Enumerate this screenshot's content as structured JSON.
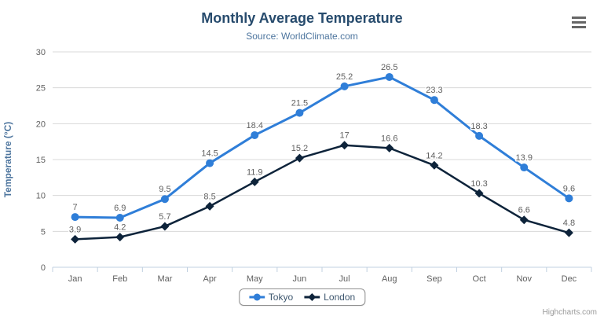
{
  "title": "Monthly Average Temperature",
  "subtitle": "Source: WorldClimate.com",
  "credits": "Highcharts.com",
  "menu": {
    "icon": "hamburger-icon"
  },
  "chart_data": {
    "type": "line",
    "title": "Monthly Average Temperature",
    "subtitle": "Source: WorldClimate.com",
    "categories": [
      "Jan",
      "Feb",
      "Mar",
      "Apr",
      "May",
      "Jun",
      "Jul",
      "Aug",
      "Sep",
      "Oct",
      "Nov",
      "Dec"
    ],
    "series": [
      {
        "name": "Tokyo",
        "color": "#2f7ed8",
        "marker": "circle",
        "values": [
          7,
          6.9,
          9.5,
          14.5,
          18.4,
          21.5,
          25.2,
          26.5,
          23.3,
          18.3,
          13.9,
          9.6
        ]
      },
      {
        "name": "London",
        "color": "#0d233a",
        "marker": "diamond",
        "values": [
          3.9,
          4.2,
          5.7,
          8.5,
          11.9,
          15.2,
          17,
          16.6,
          14.2,
          10.3,
          6.6,
          4.8
        ]
      }
    ],
    "xlabel": "",
    "ylabel": "Temperature (°C)",
    "ylim": [
      0,
      30
    ],
    "ytick_interval": 5,
    "yticks": [
      0,
      5,
      10,
      15,
      20,
      25,
      30
    ],
    "grid": true,
    "data_labels": true,
    "legend_position": "bottom"
  }
}
